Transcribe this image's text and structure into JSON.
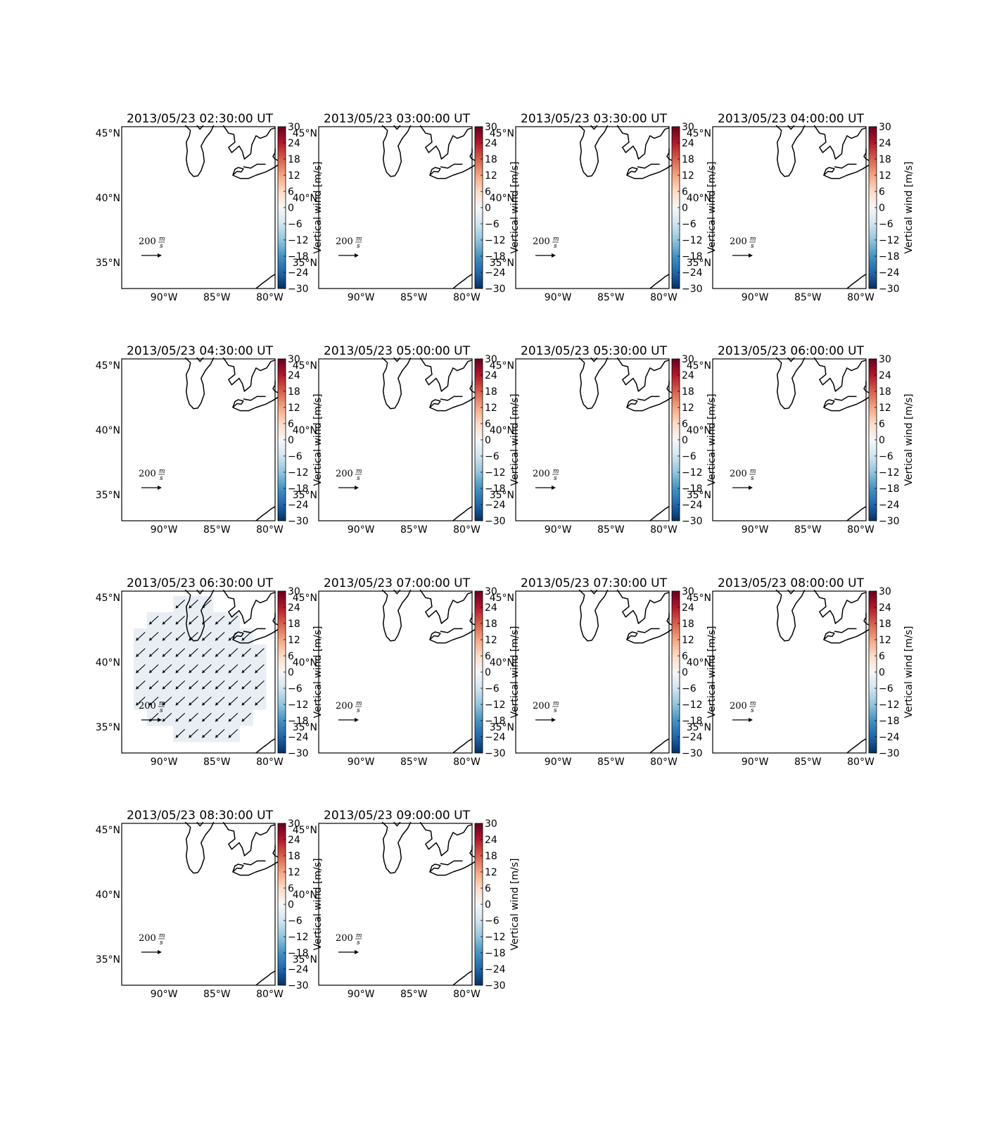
{
  "figure": {
    "colorbar_label": "Vertical wind [m/s]",
    "colorbar_ticks": [
      "30",
      "24",
      "18",
      "12",
      "6",
      "0",
      "−6",
      "−12",
      "−18",
      "−24",
      "−30"
    ],
    "lat_ticks": [
      "45°N",
      "40°N",
      "35°N"
    ],
    "lon_ticks": [
      "90°W",
      "85°W",
      "80°W"
    ],
    "quiver_key": {
      "value": "200",
      "unit_numerator": "m",
      "unit_denominator": "s"
    },
    "colormap": [
      "#053061",
      "#2166ac",
      "#4393c3",
      "#92c5de",
      "#d1e5f0",
      "#f7f7f7",
      "#fddbc7",
      "#f4a582",
      "#d6604d",
      "#b2182b",
      "#67001f"
    ],
    "field_fill_color": "#e8eef3"
  },
  "chart_data": [
    {
      "type": "heatmap",
      "title": "2013/05/23 02:30:00 UT",
      "xlabel": "",
      "ylabel": "",
      "colorbar_range": [
        -30,
        30
      ],
      "lon_range": [
        -94,
        -79.5
      ],
      "lat_range": [
        33,
        45.5
      ],
      "has_field": false
    },
    {
      "type": "heatmap",
      "title": "2013/05/23 03:00:00 UT",
      "xlabel": "",
      "ylabel": "",
      "colorbar_range": [
        -30,
        30
      ],
      "lon_range": [
        -94,
        -79.5
      ],
      "lat_range": [
        33,
        45.5
      ],
      "has_field": false
    },
    {
      "type": "heatmap",
      "title": "2013/05/23 03:30:00 UT",
      "xlabel": "",
      "ylabel": "",
      "colorbar_range": [
        -30,
        30
      ],
      "lon_range": [
        -94,
        -79.5
      ],
      "lat_range": [
        33,
        45.5
      ],
      "has_field": false
    },
    {
      "type": "heatmap",
      "title": "2013/05/23 04:00:00 UT",
      "xlabel": "",
      "ylabel": "",
      "colorbar_range": [
        -30,
        30
      ],
      "lon_range": [
        -94,
        -79.5
      ],
      "lat_range": [
        33,
        45.5
      ],
      "has_field": false
    },
    {
      "type": "heatmap",
      "title": "2013/05/23 04:30:00 UT",
      "xlabel": "",
      "ylabel": "",
      "colorbar_range": [
        -30,
        30
      ],
      "lon_range": [
        -94,
        -79.5
      ],
      "lat_range": [
        33,
        45.5
      ],
      "has_field": false
    },
    {
      "type": "heatmap",
      "title": "2013/05/23 05:00:00 UT",
      "xlabel": "",
      "ylabel": "",
      "colorbar_range": [
        -30,
        30
      ],
      "lon_range": [
        -94,
        -79.5
      ],
      "lat_range": [
        33,
        45.5
      ],
      "has_field": false
    },
    {
      "type": "heatmap",
      "title": "2013/05/23 05:30:00 UT",
      "xlabel": "",
      "ylabel": "",
      "colorbar_range": [
        -30,
        30
      ],
      "lon_range": [
        -94,
        -79.5
      ],
      "lat_range": [
        33,
        45.5
      ],
      "has_field": false
    },
    {
      "type": "heatmap",
      "title": "2013/05/23 06:00:00 UT",
      "xlabel": "",
      "ylabel": "",
      "colorbar_range": [
        -30,
        30
      ],
      "lon_range": [
        -94,
        -79.5
      ],
      "lat_range": [
        33,
        45.5
      ],
      "has_field": false
    },
    {
      "type": "heatmap",
      "title": "2013/05/23 06:30:00 UT",
      "xlabel": "",
      "ylabel": "",
      "colorbar_range": [
        -30,
        30
      ],
      "lon_range": [
        -94,
        -79.5
      ],
      "lat_range": [
        33,
        45.5
      ],
      "has_field": true,
      "field_value_approx": -2,
      "wind_direction": "toward south-west"
    },
    {
      "type": "heatmap",
      "title": "2013/05/23 07:00:00 UT",
      "xlabel": "",
      "ylabel": "",
      "colorbar_range": [
        -30,
        30
      ],
      "lon_range": [
        -94,
        -79.5
      ],
      "lat_range": [
        33,
        45.5
      ],
      "has_field": false
    },
    {
      "type": "heatmap",
      "title": "2013/05/23 07:30:00 UT",
      "xlabel": "",
      "ylabel": "",
      "colorbar_range": [
        -30,
        30
      ],
      "lon_range": [
        -94,
        -79.5
      ],
      "lat_range": [
        33,
        45.5
      ],
      "has_field": false
    },
    {
      "type": "heatmap",
      "title": "2013/05/23 08:00:00 UT",
      "xlabel": "",
      "ylabel": "",
      "colorbar_range": [
        -30,
        30
      ],
      "lon_range": [
        -94,
        -79.5
      ],
      "lat_range": [
        33,
        45.5
      ],
      "has_field": false
    },
    {
      "type": "heatmap",
      "title": "2013/05/23 08:30:00 UT",
      "xlabel": "",
      "ylabel": "",
      "colorbar_range": [
        -30,
        30
      ],
      "lon_range": [
        -94,
        -79.5
      ],
      "lat_range": [
        33,
        45.5
      ],
      "has_field": false
    },
    {
      "type": "heatmap",
      "title": "2013/05/23 09:00:00 UT",
      "xlabel": "",
      "ylabel": "",
      "colorbar_range": [
        -30,
        30
      ],
      "lon_range": [
        -94,
        -79.5
      ],
      "lat_range": [
        33,
        45.5
      ],
      "has_field": false
    }
  ]
}
